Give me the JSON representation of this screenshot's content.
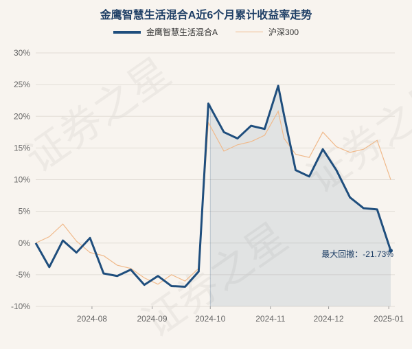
{
  "watermark": "证券之星",
  "chart_data": {
    "type": "line",
    "title": "金鹰智慧生活混合A近6个月累计收益率走势",
    "x": [
      "2024-07-03",
      "2024-07-10",
      "2024-07-17",
      "2024-07-24",
      "2024-07-31",
      "2024-08-07",
      "2024-08-14",
      "2024-08-21",
      "2024-08-28",
      "2024-09-04",
      "2024-09-11",
      "2024-09-18",
      "2024-09-25",
      "2024-09-30",
      "2024-10-08",
      "2024-10-15",
      "2024-10-22",
      "2024-10-29",
      "2024-11-05",
      "2024-11-08",
      "2024-11-14",
      "2024-11-21",
      "2024-11-28",
      "2024-12-05",
      "2024-12-12",
      "2024-12-19",
      "2024-12-26",
      "2025-01-02"
    ],
    "xticks": [
      "2024-08",
      "2024-09",
      "2024-10",
      "2024-11",
      "2024-12",
      "2025-01"
    ],
    "ylim": [
      -10,
      30
    ],
    "yticks": [
      -10,
      -5,
      0,
      5,
      10,
      15,
      20,
      25,
      30
    ],
    "ytick_labels": [
      "-10%",
      "-5%",
      "0%",
      "5%",
      "10%",
      "15%",
      "20%",
      "25%",
      "30%"
    ],
    "series": [
      {
        "name": "金鹰智慧生活混合A",
        "color": "#1f4e7d",
        "values": [
          0,
          -3.8,
          0.4,
          -1.5,
          0.8,
          -4.8,
          -5.2,
          -4.2,
          -6.6,
          -5.2,
          -6.8,
          -6.9,
          -4.5,
          22.0,
          17.5,
          16.5,
          18.5,
          18.0,
          24.8,
          20.2,
          11.5,
          10.5,
          14.8,
          11.5,
          7.2,
          5.5,
          5.3,
          -1.2
        ]
      },
      {
        "name": "沪深300",
        "color": "#f0b98a",
        "values": [
          0,
          1.0,
          3.0,
          0.3,
          -1.5,
          -2.0,
          -3.5,
          -4.0,
          -5.5,
          -6.5,
          -5.0,
          -6.0,
          -4.0,
          19.0,
          14.5,
          15.5,
          16.0,
          17.0,
          20.8,
          16.5,
          14.0,
          13.5,
          17.5,
          15.2,
          14.3,
          14.8,
          16.2,
          10.0
        ]
      }
    ],
    "annotation": "最大回撤：-21.73%",
    "grid": true,
    "legend_position": "top"
  }
}
